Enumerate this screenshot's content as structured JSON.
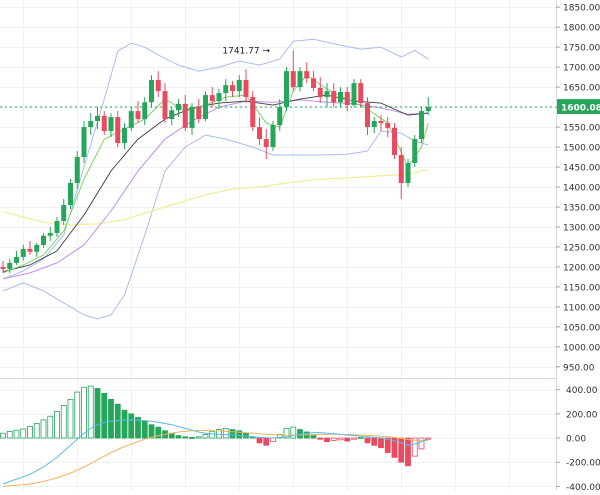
{
  "chart_data": {
    "type": "candlestick",
    "price_axis": {
      "ticks": [
        950,
        1000,
        1050,
        1100,
        1150,
        1200,
        1250,
        1300,
        1350,
        1400,
        1450,
        1500,
        1550,
        1600,
        1650,
        1700,
        1750,
        1800,
        1850
      ],
      "tick_labels": [
        "950.00",
        "1000.00",
        "1050.00",
        "1100.00",
        "1150.00",
        "1200.00",
        "1250.00",
        "1300.00",
        "1350.00",
        "1400.00",
        "1450.00",
        "1500.00",
        "1550.00",
        "1600.00",
        "1650.00",
        "1700.00",
        "1750.00",
        "1800.00",
        "1850.00"
      ],
      "range": [
        922,
        1868
      ]
    },
    "macd_axis": {
      "ticks": [
        400,
        200,
        0,
        -200,
        -400
      ],
      "tick_labels": [
        "400.00",
        "200.00",
        "0.00",
        "-200.00",
        "-400.00"
      ],
      "range": [
        -430,
        480
      ]
    },
    "last_price": 1600.08,
    "last_price_label": "1600.08",
    "max_marker": {
      "value": 1741.77,
      "label": "1741.77 →",
      "index": 40
    },
    "candles": [
      [
        1200,
        1215,
        1185,
        1195
      ],
      [
        1195,
        1220,
        1185,
        1210
      ],
      [
        1210,
        1240,
        1205,
        1225
      ],
      [
        1225,
        1255,
        1215,
        1245
      ],
      [
        1245,
        1265,
        1230,
        1238
      ],
      [
        1238,
        1260,
        1225,
        1255
      ],
      [
        1255,
        1285,
        1248,
        1278
      ],
      [
        1278,
        1300,
        1265,
        1285
      ],
      [
        1285,
        1325,
        1275,
        1315
      ],
      [
        1315,
        1370,
        1305,
        1355
      ],
      [
        1355,
        1420,
        1345,
        1410
      ],
      [
        1410,
        1490,
        1395,
        1475
      ],
      [
        1475,
        1565,
        1460,
        1550
      ],
      [
        1550,
        1585,
        1530,
        1565
      ],
      [
        1565,
        1600,
        1545,
        1578
      ],
      [
        1578,
        1590,
        1530,
        1540
      ],
      [
        1540,
        1585,
        1525,
        1575
      ],
      [
        1575,
        1590,
        1500,
        1510
      ],
      [
        1510,
        1560,
        1495,
        1548
      ],
      [
        1548,
        1600,
        1540,
        1590
      ],
      [
        1590,
        1615,
        1560,
        1570
      ],
      [
        1570,
        1625,
        1555,
        1612
      ],
      [
        1612,
        1680,
        1600,
        1668
      ],
      [
        1668,
        1690,
        1625,
        1640
      ],
      [
        1640,
        1660,
        1560,
        1570
      ],
      [
        1570,
        1600,
        1555,
        1592
      ],
      [
        1592,
        1620,
        1575,
        1608
      ],
      [
        1608,
        1630,
        1540,
        1548
      ],
      [
        1548,
        1610,
        1530,
        1600
      ],
      [
        1600,
        1620,
        1560,
        1570
      ],
      [
        1570,
        1640,
        1565,
        1630
      ],
      [
        1630,
        1650,
        1600,
        1615
      ],
      [
        1615,
        1645,
        1595,
        1635
      ],
      [
        1635,
        1670,
        1615,
        1655
      ],
      [
        1655,
        1665,
        1625,
        1640
      ],
      [
        1640,
        1680,
        1625,
        1668
      ],
      [
        1668,
        1695,
        1610,
        1625
      ],
      [
        1625,
        1640,
        1540,
        1550
      ],
      [
        1550,
        1575,
        1505,
        1520
      ],
      [
        1520,
        1545,
        1470,
        1500
      ],
      [
        1500,
        1565,
        1490,
        1555
      ],
      [
        1555,
        1620,
        1540,
        1600
      ],
      [
        1600,
        1700,
        1590,
        1690
      ],
      [
        1690,
        1742,
        1640,
        1650
      ],
      [
        1650,
        1700,
        1640,
        1690
      ],
      [
        1690,
        1712,
        1660,
        1672
      ],
      [
        1672,
        1690,
        1640,
        1648
      ],
      [
        1648,
        1675,
        1610,
        1625
      ],
      [
        1625,
        1660,
        1600,
        1640
      ],
      [
        1640,
        1660,
        1600,
        1612
      ],
      [
        1612,
        1650,
        1600,
        1638
      ],
      [
        1638,
        1650,
        1590,
        1605
      ],
      [
        1605,
        1670,
        1600,
        1660
      ],
      [
        1660,
        1670,
        1600,
        1610
      ],
      [
        1610,
        1625,
        1530,
        1550
      ],
      [
        1550,
        1575,
        1535,
        1565
      ],
      [
        1565,
        1580,
        1540,
        1560
      ],
      [
        1560,
        1575,
        1525,
        1548
      ],
      [
        1548,
        1560,
        1470,
        1480
      ],
      [
        1480,
        1500,
        1370,
        1410
      ],
      [
        1410,
        1470,
        1400,
        1460
      ],
      [
        1460,
        1530,
        1450,
        1520
      ],
      [
        1520,
        1600,
        1510,
        1590
      ],
      [
        1590,
        1625,
        1580,
        1600.08
      ]
    ],
    "overlays": {
      "bollinger_upper": [
        [
          0,
          1170
        ],
        [
          3,
          1190
        ],
        [
          6,
          1220
        ],
        [
          9,
          1280
        ],
        [
          12,
          1450
        ],
        [
          15,
          1620
        ],
        [
          17,
          1740
        ],
        [
          19,
          1760
        ],
        [
          21,
          1750
        ],
        [
          23,
          1730
        ],
        [
          26,
          1705
        ],
        [
          29,
          1690
        ],
        [
          32,
          1700
        ],
        [
          35,
          1715
        ],
        [
          38,
          1705
        ],
        [
          41,
          1720
        ],
        [
          43,
          1765
        ],
        [
          46,
          1770
        ],
        [
          50,
          1755
        ],
        [
          53,
          1745
        ],
        [
          56,
          1750
        ],
        [
          59,
          1725
        ],
        [
          61,
          1742
        ],
        [
          63,
          1720
        ]
      ],
      "bollinger_lower": [
        [
          0,
          1140
        ],
        [
          3,
          1160
        ],
        [
          6,
          1140
        ],
        [
          9,
          1110
        ],
        [
          12,
          1080
        ],
        [
          14,
          1070
        ],
        [
          16,
          1080
        ],
        [
          18,
          1130
        ],
        [
          21,
          1280
        ],
        [
          24,
          1440
        ],
        [
          27,
          1500
        ],
        [
          30,
          1530
        ],
        [
          33,
          1520
        ],
        [
          37,
          1500
        ],
        [
          40,
          1480
        ],
        [
          43,
          1480
        ],
        [
          47,
          1480
        ],
        [
          51,
          1482
        ],
        [
          54,
          1490
        ],
        [
          56,
          1540
        ],
        [
          59,
          1535
        ],
        [
          61,
          1515
        ],
        [
          63,
          1505
        ]
      ],
      "sma_green": [
        [
          0,
          1185
        ],
        [
          3,
          1205
        ],
        [
          6,
          1230
        ],
        [
          9,
          1290
        ],
        [
          12,
          1420
        ],
        [
          15,
          1520
        ],
        [
          18,
          1545
        ],
        [
          21,
          1570
        ],
        [
          24,
          1620
        ],
        [
          27,
          1590
        ],
        [
          30,
          1605
        ],
        [
          33,
          1625
        ],
        [
          36,
          1630
        ],
        [
          39,
          1560
        ],
        [
          41,
          1550
        ],
        [
          43,
          1640
        ],
        [
          45,
          1680
        ],
        [
          48,
          1645
        ],
        [
          51,
          1620
        ],
        [
          54,
          1595
        ],
        [
          57,
          1560
        ],
        [
          60,
          1450
        ],
        [
          62,
          1500
        ],
        [
          63,
          1560
        ]
      ],
      "sma_black": [
        [
          0,
          1188
        ],
        [
          4,
          1205
        ],
        [
          8,
          1240
        ],
        [
          12,
          1330
        ],
        [
          16,
          1440
        ],
        [
          20,
          1520
        ],
        [
          24,
          1570
        ],
        [
          28,
          1598
        ],
        [
          32,
          1610
        ],
        [
          36,
          1615
        ],
        [
          40,
          1605
        ],
        [
          44,
          1620
        ],
        [
          48,
          1630
        ],
        [
          52,
          1615
        ],
        [
          56,
          1610
        ],
        [
          60,
          1580
        ],
        [
          63,
          1585
        ]
      ],
      "sma_purple": [
        [
          0,
          1170
        ],
        [
          4,
          1185
        ],
        [
          8,
          1210
        ],
        [
          12,
          1255
        ],
        [
          16,
          1340
        ],
        [
          20,
          1440
        ],
        [
          24,
          1520
        ],
        [
          28,
          1565
        ],
        [
          32,
          1600
        ],
        [
          36,
          1615
        ],
        [
          40,
          1612
        ],
        [
          44,
          1618
        ],
        [
          48,
          1612
        ],
        [
          52,
          1608
        ],
        [
          56,
          1598
        ],
        [
          60,
          1582
        ],
        [
          63,
          1585
        ]
      ],
      "sma_yellow": [
        [
          0,
          1338
        ],
        [
          3,
          1325
        ],
        [
          6,
          1312
        ],
        [
          10,
          1305
        ],
        [
          14,
          1308
        ],
        [
          18,
          1318
        ],
        [
          22,
          1340
        ],
        [
          26,
          1360
        ],
        [
          30,
          1380
        ],
        [
          34,
          1395
        ],
        [
          38,
          1400
        ],
        [
          42,
          1410
        ],
        [
          46,
          1418
        ],
        [
          50,
          1422
        ],
        [
          54,
          1426
        ],
        [
          58,
          1430
        ],
        [
          60,
          1432
        ],
        [
          62,
          1440
        ],
        [
          63,
          1442
        ]
      ]
    },
    "macd": {
      "histogram": [
        40,
        55,
        65,
        75,
        95,
        120,
        150,
        180,
        220,
        270,
        320,
        380,
        420,
        430,
        410,
        370,
        320,
        280,
        230,
        200,
        170,
        140,
        110,
        90,
        60,
        40,
        20,
        10,
        5,
        10,
        30,
        55,
        70,
        80,
        70,
        60,
        40,
        10,
        -40,
        -60,
        -30,
        30,
        80,
        90,
        70,
        50,
        20,
        -10,
        -30,
        -20,
        -15,
        -25,
        -10,
        5,
        -40,
        -60,
        -80,
        -120,
        -160,
        -200,
        -230,
        -150,
        -90,
        -10
      ],
      "macd_line": [
        -380,
        -360,
        -340,
        -320,
        -300,
        -270,
        -240,
        -200,
        -160,
        -110,
        -60,
        -10,
        40,
        80,
        110,
        130,
        140,
        145,
        148,
        150,
        148,
        144,
        138,
        130,
        120,
        110,
        95,
        80,
        65,
        50,
        40,
        35,
        30,
        28,
        25,
        20,
        15,
        10,
        5,
        2,
        0,
        5,
        10,
        20,
        30,
        40,
        45,
        45,
        40,
        35,
        30,
        25,
        20,
        15,
        10,
        5,
        0,
        -10,
        -25,
        -40,
        -60,
        -50,
        -30,
        -10
      ],
      "signal_line": [
        -400,
        -395,
        -390,
        -385,
        -380,
        -370,
        -360,
        -345,
        -330,
        -310,
        -290,
        -265,
        -240,
        -210,
        -180,
        -150,
        -120,
        -95,
        -70,
        -50,
        -30,
        -10,
        5,
        18,
        30,
        40,
        50,
        55,
        60,
        62,
        62,
        60,
        58,
        55,
        52,
        48,
        44,
        40,
        36,
        32,
        28,
        26,
        24,
        24,
        25,
        27,
        29,
        30,
        31,
        31,
        30,
        29,
        27,
        25,
        22,
        19,
        15,
        10,
        4,
        -3,
        -12,
        -18,
        -20,
        -20
      ]
    }
  }
}
